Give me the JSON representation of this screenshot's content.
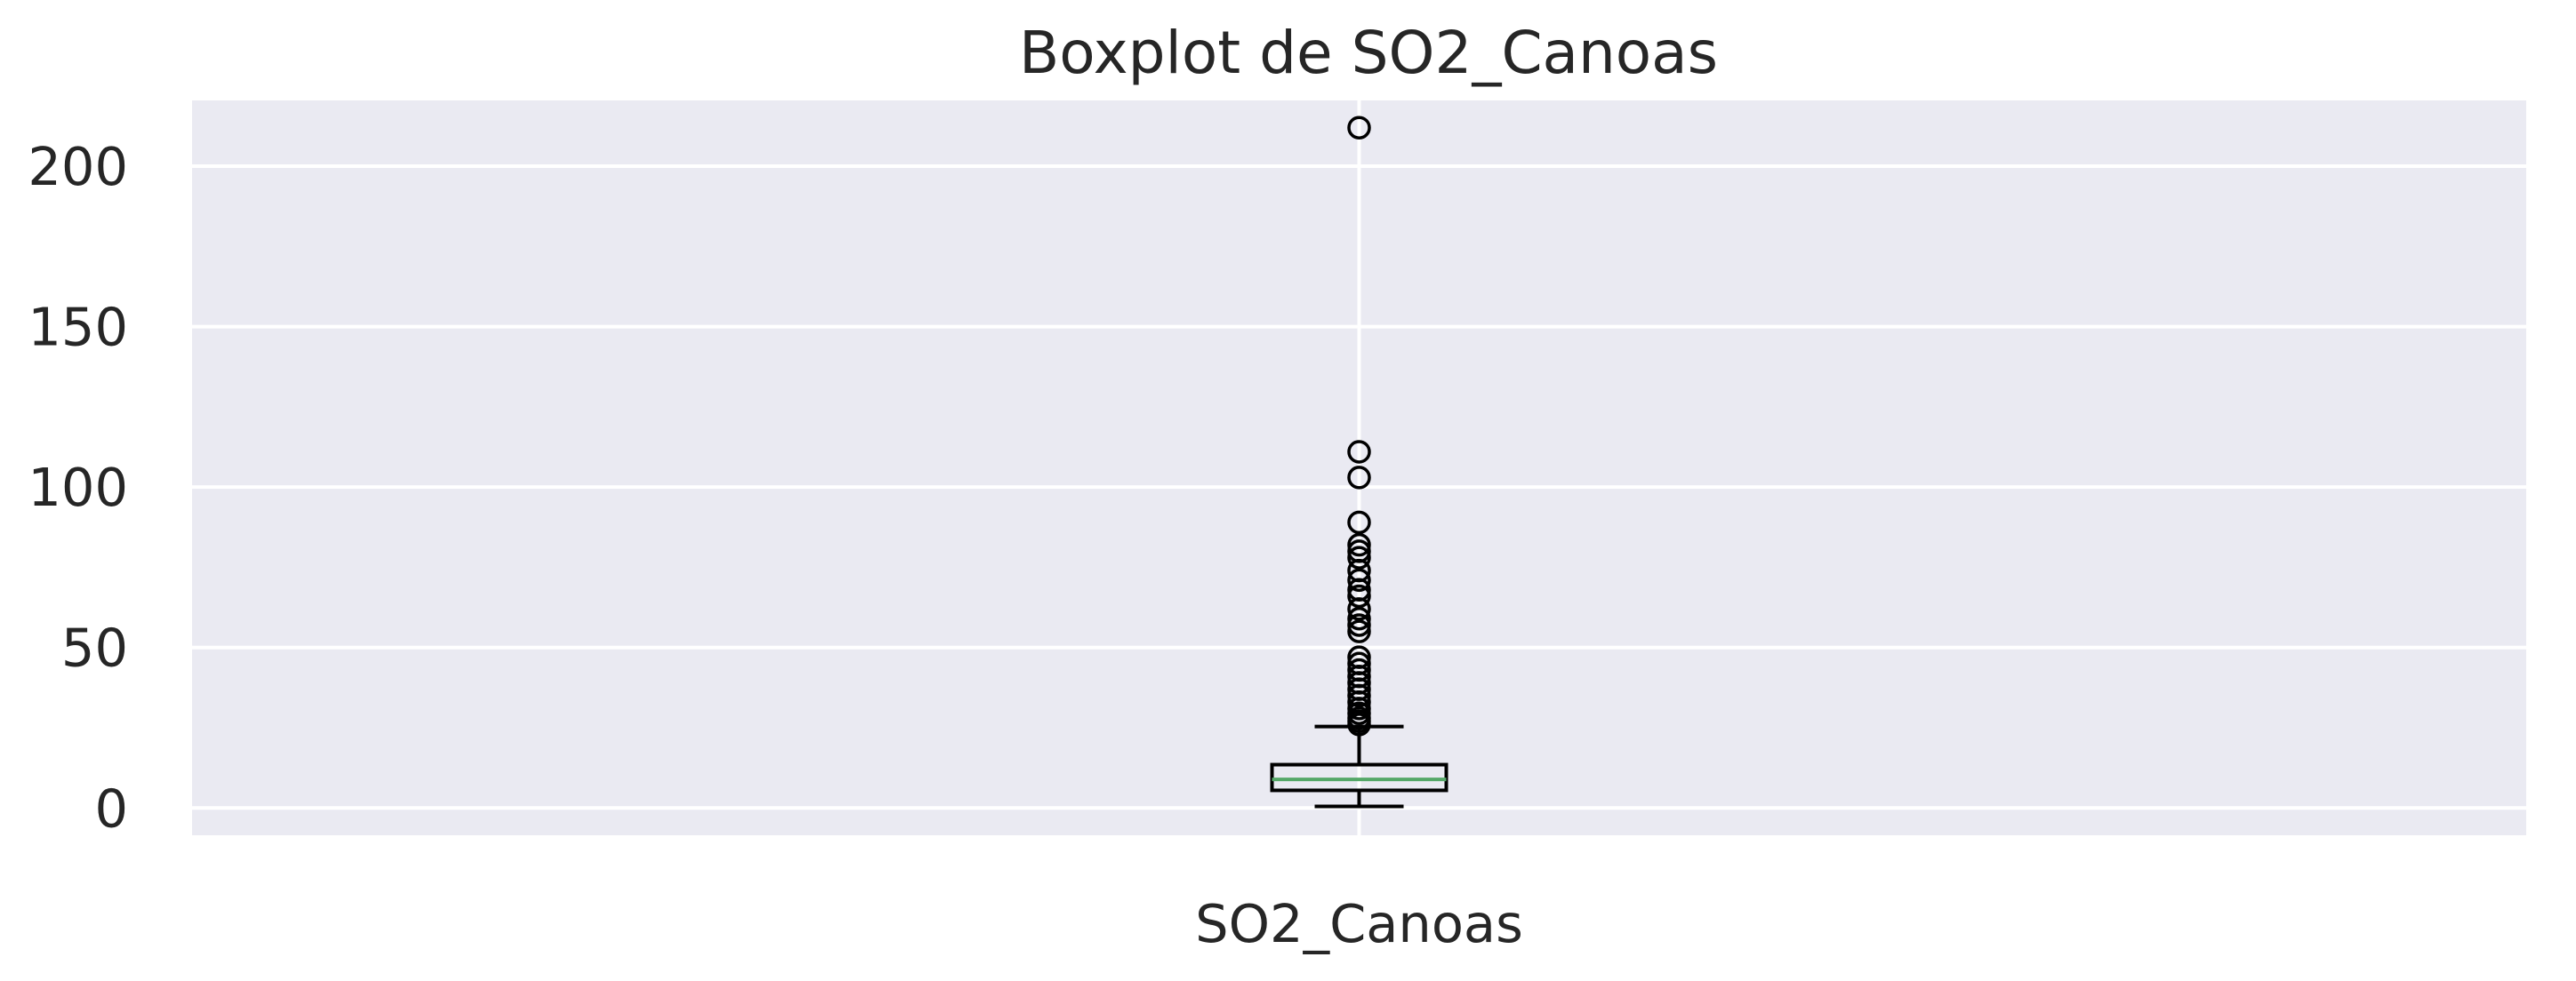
{
  "chart_data": {
    "type": "boxplot",
    "title": "Boxplot de SO2_Canoas",
    "categories": [
      "SO2_Canoas"
    ],
    "xlabel": "",
    "ylabel": "",
    "ylim": [
      -8.5,
      220.5
    ],
    "yticks": [
      0,
      50,
      100,
      150,
      200
    ],
    "grid": true,
    "legend": "none",
    "boxes": [
      {
        "name": "SO2_Canoas",
        "whisker_low": 0.5,
        "q1": 5.5,
        "median": 8.9,
        "q3": 13.5,
        "whisker_high": 25.4,
        "outliers": [
          212,
          111,
          103,
          89,
          82,
          80,
          78,
          74,
          71,
          68,
          66,
          62,
          59,
          57,
          55,
          47,
          45,
          43,
          41,
          39,
          37,
          35,
          33,
          31,
          29.5,
          28,
          27,
          26
        ]
      }
    ],
    "colors": {
      "background": "#eaeaf2",
      "grid": "#ffffff",
      "box": "#000000",
      "median": "#55a868",
      "text": "#262626"
    }
  }
}
